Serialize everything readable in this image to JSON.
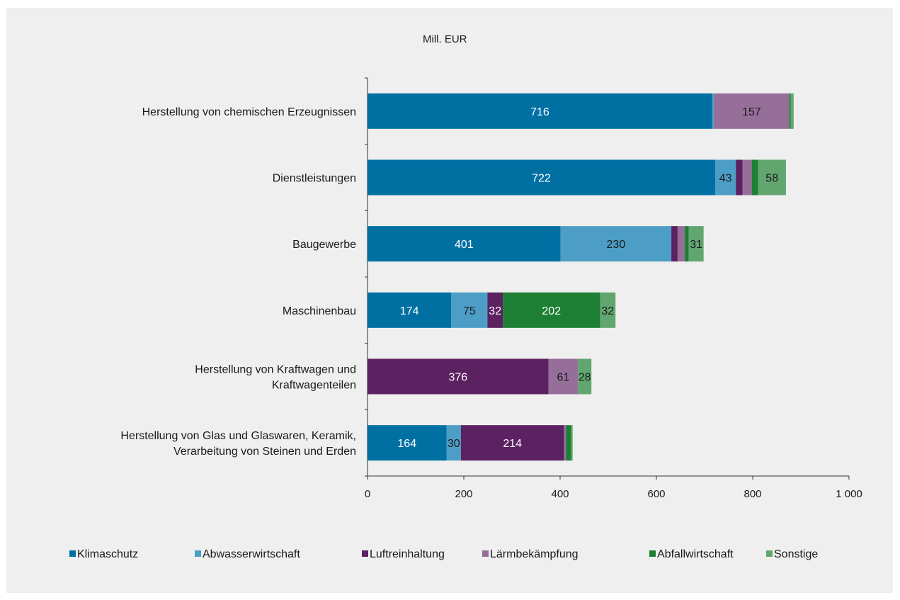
{
  "chart_data": {
    "type": "bar",
    "orientation": "horizontal",
    "stacked": true,
    "unit_label": "Mill. EUR",
    "categories": [
      [
        "Herstellung von chemischen Erzeugnissen"
      ],
      [
        "Dienstleistungen"
      ],
      [
        "Baugewerbe"
      ],
      [
        "Maschinenbau"
      ],
      [
        "Herstellung von Kraftwagen und",
        "Kraftwagenteilen"
      ],
      [
        "Herstellung von Glas und Glaswaren, Keramik,",
        "Verarbeitung von Steinen und Erden"
      ]
    ],
    "series": [
      {
        "name": "Klimaschutz",
        "color": "#0070a3",
        "label_color": "#ffffff",
        "values": [
          716,
          722,
          401,
          174,
          0,
          164
        ],
        "labels": [
          "716",
          "722",
          "401",
          "174",
          "",
          "164"
        ]
      },
      {
        "name": "Abwasserwirtschaft",
        "color": "#4d9ec6",
        "label_color": "#1a1a1a",
        "values": [
          3,
          43,
          230,
          75,
          0,
          30
        ],
        "labels": [
          "",
          "43",
          "230",
          "75",
          "",
          "30"
        ]
      },
      {
        "name": "Luftreinhaltung",
        "color": "#5b2161",
        "label_color": "#ffffff",
        "values": [
          0,
          14,
          13,
          32,
          376,
          214
        ],
        "labels": [
          "",
          "",
          "",
          "32",
          "376",
          "214"
        ]
      },
      {
        "name": "Lärmbekämpfung",
        "color": "#956f9a",
        "label_color": "#1a1a1a",
        "values": [
          157,
          19,
          15,
          0,
          61,
          4
        ],
        "labels": [
          "157",
          "",
          "",
          "",
          "61",
          ""
        ]
      },
      {
        "name": "Abfallwirtschaft",
        "color": "#1d7f33",
        "label_color": "#ffffff",
        "values": [
          3,
          13,
          8,
          202,
          0,
          11
        ],
        "labels": [
          "",
          "",
          "",
          "202",
          "",
          ""
        ]
      },
      {
        "name": "Sonstige",
        "color": "#62a66f",
        "label_color": "#1a1a1a",
        "values": [
          6,
          58,
          31,
          32,
          28,
          3
        ],
        "labels": [
          "",
          "58",
          "31",
          "32",
          "28",
          ""
        ]
      }
    ],
    "xlim": [
      0,
      1000
    ],
    "x_ticks": [
      0,
      200,
      400,
      600,
      800,
      1000
    ],
    "x_tick_labels": [
      "0",
      "200",
      "400",
      "600",
      "800",
      "1 000"
    ],
    "grid": false,
    "legend_position": "bottom"
  }
}
